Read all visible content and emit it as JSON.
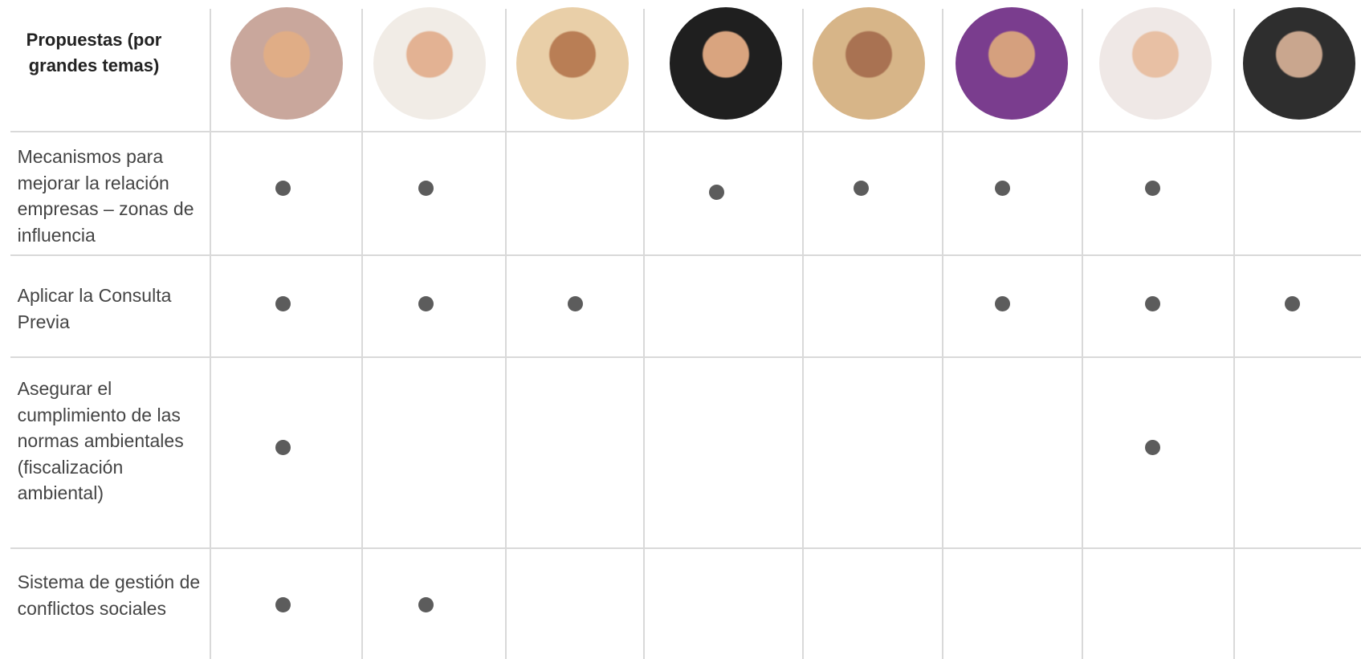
{
  "header": {
    "title": "Propuestas (por grandes temas)"
  },
  "table": {
    "rows": [
      {
        "label": "Mecanismos para mejorar la relación empresas – zonas de influencia",
        "marks": [
          true,
          true,
          false,
          true,
          true,
          true,
          true,
          false
        ]
      },
      {
        "label": "Aplicar  la Consulta Previa",
        "marks": [
          true,
          true,
          true,
          false,
          false,
          true,
          true,
          true
        ]
      },
      {
        "label": "Asegurar el cumplimiento de las normas ambientales (fiscalización ambiental)",
        "marks": [
          true,
          false,
          false,
          false,
          false,
          false,
          true,
          false
        ]
      },
      {
        "label": "Sistema de gestión de conflictos sociales",
        "marks": [
          true,
          true,
          false,
          false,
          false,
          false,
          false,
          false
        ]
      }
    ]
  }
}
